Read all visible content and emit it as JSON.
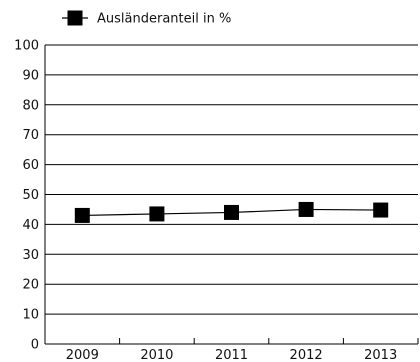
{
  "chart_data": {
    "type": "line",
    "x": [
      "2009",
      "2010",
      "2011",
      "2012",
      "2013"
    ],
    "series": [
      {
        "name": "Ausländeranteil in %",
        "values": [
          43,
          43.5,
          44,
          45,
          44.8
        ]
      }
    ],
    "ylim": [
      0,
      100
    ],
    "yticks": [
      0,
      10,
      20,
      30,
      40,
      50,
      60,
      70,
      80,
      90,
      100
    ],
    "grid": "horizontal",
    "legend": "top-left",
    "marker": "square",
    "colors": {
      "series": "#000000",
      "grid": "#000000",
      "axis": "#000000"
    }
  }
}
